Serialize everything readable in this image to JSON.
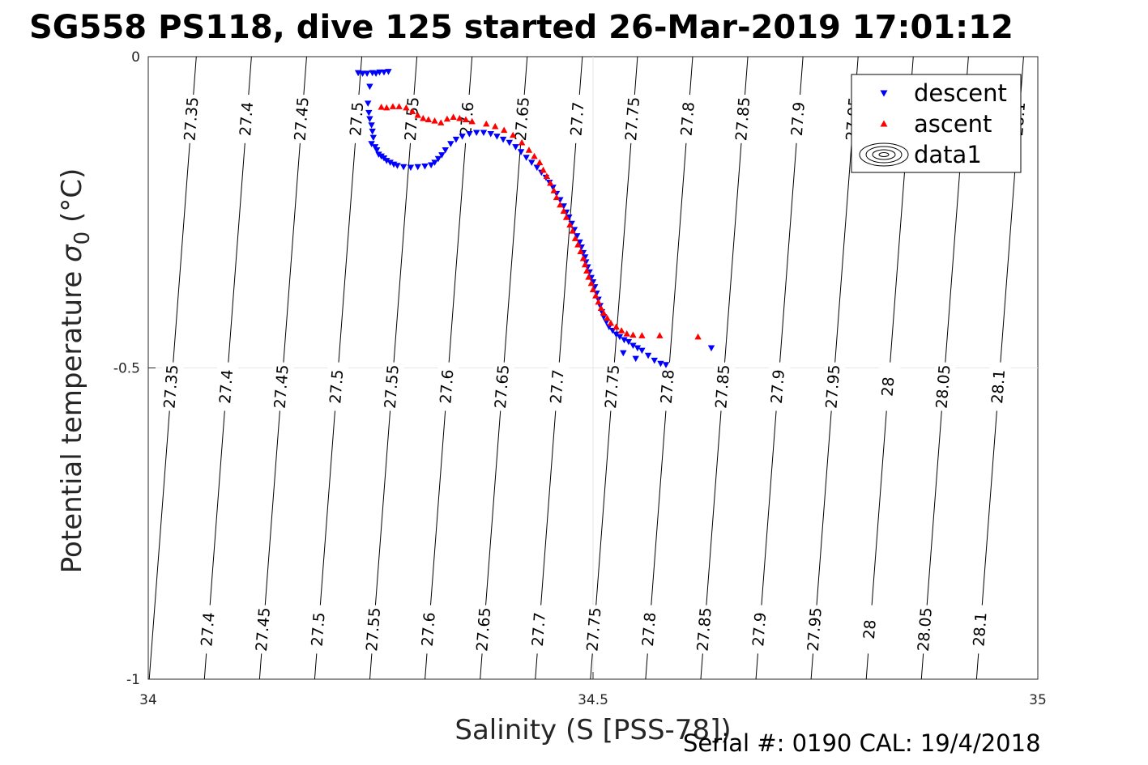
{
  "title": "SG558 PS118, dive 125 started 26-Mar-2019 17:01:12",
  "footer_text": "Serial #: 0190  CAL: 19/4/2018",
  "chart_data": {
    "type": "scatter",
    "xlabel": "Salinity (S [PSS-78])",
    "ylabel_main": "Potential temperature ",
    "ylabel_sigma": "σ",
    "ylabel_sub": "0",
    "ylabel_unit": " (°C)",
    "xlim": [
      34,
      35
    ],
    "ylim": [
      -1,
      0
    ],
    "x_ticks": [
      {
        "value": 34,
        "label": "34"
      },
      {
        "value": 34.5,
        "label": "34.5"
      },
      {
        "value": 35,
        "label": "35"
      }
    ],
    "y_ticks": [
      {
        "value": 0,
        "label": "0"
      },
      {
        "value": -0.5,
        "label": "-0.5"
      },
      {
        "value": -1,
        "label": "-1"
      }
    ],
    "grid": true,
    "legend": {
      "position": "top-right",
      "entries": [
        {
          "label": "descent",
          "color": "#0000ff",
          "marker": "triangle-down"
        },
        {
          "label": "ascent",
          "color": "#ff0000",
          "marker": "triangle-up"
        },
        {
          "label": "data1",
          "color": "#000000",
          "marker": "contour"
        }
      ]
    },
    "isopycnals": [
      {
        "sigma": 27.35,
        "label": "27.35",
        "s_at_top": 34.054
      },
      {
        "sigma": 27.4,
        "label": "27.4",
        "s_at_top": 34.116
      },
      {
        "sigma": 27.45,
        "label": "27.45",
        "s_at_top": 34.178
      },
      {
        "sigma": 27.5,
        "label": "27.5",
        "s_at_top": 34.24
      },
      {
        "sigma": 27.55,
        "label": "27.55",
        "s_at_top": 34.302
      },
      {
        "sigma": 27.6,
        "label": "27.6",
        "s_at_top": 34.364
      },
      {
        "sigma": 27.65,
        "label": "27.65",
        "s_at_top": 34.426
      },
      {
        "sigma": 27.7,
        "label": "27.7",
        "s_at_top": 34.488
      },
      {
        "sigma": 27.75,
        "label": "27.75",
        "s_at_top": 34.55
      },
      {
        "sigma": 27.8,
        "label": "27.8",
        "s_at_top": 34.612
      },
      {
        "sigma": 27.85,
        "label": "27.85",
        "s_at_top": 34.674
      },
      {
        "sigma": 27.9,
        "label": "27.9",
        "s_at_top": 34.736
      },
      {
        "sigma": 27.95,
        "label": "27.95",
        "s_at_top": 34.798
      },
      {
        "sigma": 28,
        "label": "28",
        "s_at_top": 34.86
      },
      {
        "sigma": 28.05,
        "label": "28.05",
        "s_at_top": 34.922
      },
      {
        "sigma": 28.1,
        "label": "28.1",
        "s_at_top": 34.984
      }
    ],
    "isopycnal_slope_ds_dtheta": 0.0529,
    "contour_label_temperatures": [
      -0.1,
      -0.53,
      -0.92
    ],
    "series": [
      {
        "name": "descent",
        "color": "#0000ff",
        "marker": "triangle-down",
        "points": [
          [
            34.236,
            -0.026
          ],
          [
            34.241,
            -0.027
          ],
          [
            34.246,
            -0.027
          ],
          [
            34.249,
            -0.048
          ],
          [
            34.252,
            -0.026
          ],
          [
            34.256,
            -0.027
          ],
          [
            34.26,
            -0.025
          ],
          [
            34.265,
            -0.025
          ],
          [
            34.27,
            -0.024
          ],
          [
            34.247,
            -0.075
          ],
          [
            34.248,
            -0.09
          ],
          [
            34.249,
            -0.1
          ],
          [
            34.251,
            -0.11
          ],
          [
            34.252,
            -0.12
          ],
          [
            34.253,
            -0.13
          ],
          [
            34.251,
            -0.14
          ],
          [
            34.255,
            -0.145
          ],
          [
            34.257,
            -0.15
          ],
          [
            34.259,
            -0.157
          ],
          [
            34.262,
            -0.16
          ],
          [
            34.265,
            -0.163
          ],
          [
            34.268,
            -0.167
          ],
          [
            34.272,
            -0.17
          ],
          [
            34.276,
            -0.173
          ],
          [
            34.28,
            -0.175
          ],
          [
            34.287,
            -0.177
          ],
          [
            34.295,
            -0.178
          ],
          [
            34.303,
            -0.177
          ],
          [
            34.311,
            -0.176
          ],
          [
            34.318,
            -0.174
          ],
          [
            34.322,
            -0.17
          ],
          [
            34.326,
            -0.164
          ],
          [
            34.33,
            -0.158
          ],
          [
            34.334,
            -0.15
          ],
          [
            34.34,
            -0.14
          ],
          [
            34.346,
            -0.133
          ],
          [
            34.353,
            -0.128
          ],
          [
            34.361,
            -0.124
          ],
          [
            34.369,
            -0.122
          ],
          [
            34.377,
            -0.122
          ],
          [
            34.385,
            -0.124
          ],
          [
            34.392,
            -0.128
          ],
          [
            34.399,
            -0.133
          ],
          [
            34.406,
            -0.138
          ],
          [
            34.413,
            -0.145
          ],
          [
            34.419,
            -0.153
          ],
          [
            34.425,
            -0.162
          ],
          [
            34.431,
            -0.17
          ],
          [
            34.437,
            -0.178
          ],
          [
            34.442,
            -0.186
          ],
          [
            34.447,
            -0.194
          ],
          [
            34.451,
            -0.202
          ],
          [
            34.455,
            -0.21
          ],
          [
            34.459,
            -0.22
          ],
          [
            34.463,
            -0.23
          ],
          [
            34.467,
            -0.24
          ],
          [
            34.47,
            -0.25
          ],
          [
            34.473,
            -0.258
          ],
          [
            34.476,
            -0.268
          ],
          [
            34.479,
            -0.278
          ],
          [
            34.482,
            -0.288
          ],
          [
            34.485,
            -0.298
          ],
          [
            34.487,
            -0.306
          ],
          [
            34.489,
            -0.315
          ],
          [
            34.491,
            -0.322
          ],
          [
            34.492,
            -0.33
          ],
          [
            34.494,
            -0.338
          ],
          [
            34.496,
            -0.346
          ],
          [
            34.498,
            -0.355
          ],
          [
            34.5,
            -0.362
          ],
          [
            34.502,
            -0.37
          ],
          [
            34.504,
            -0.38
          ],
          [
            34.506,
            -0.39
          ],
          [
            34.508,
            -0.4
          ],
          [
            34.51,
            -0.41
          ],
          [
            34.512,
            -0.418
          ],
          [
            34.515,
            -0.426
          ],
          [
            34.518,
            -0.434
          ],
          [
            34.522,
            -0.44
          ],
          [
            34.526,
            -0.446
          ],
          [
            34.53,
            -0.45
          ],
          [
            34.535,
            -0.455
          ],
          [
            34.54,
            -0.458
          ],
          [
            34.545,
            -0.464
          ],
          [
            34.55,
            -0.468
          ],
          [
            34.555,
            -0.472
          ],
          [
            34.562,
            -0.48
          ],
          [
            34.569,
            -0.488
          ],
          [
            34.548,
            -0.485
          ],
          [
            34.534,
            -0.476
          ],
          [
            34.576,
            -0.493
          ],
          [
            34.582,
            -0.495
          ],
          [
            34.633,
            -0.468
          ]
        ]
      },
      {
        "name": "ascent",
        "color": "#ff0000",
        "marker": "triangle-up",
        "points": [
          [
            34.262,
            -0.081
          ],
          [
            34.268,
            -0.082
          ],
          [
            34.275,
            -0.08
          ],
          [
            34.282,
            -0.08
          ],
          [
            34.29,
            -0.082
          ],
          [
            34.297,
            -0.088
          ],
          [
            34.303,
            -0.094
          ],
          [
            34.309,
            -0.099
          ],
          [
            34.315,
            -0.101
          ],
          [
            34.322,
            -0.103
          ],
          [
            34.329,
            -0.106
          ],
          [
            34.336,
            -0.1
          ],
          [
            34.343,
            -0.097
          ],
          [
            34.35,
            -0.099
          ],
          [
            34.357,
            -0.101
          ],
          [
            34.364,
            -0.104
          ],
          [
            34.38,
            -0.108
          ],
          [
            34.39,
            -0.112
          ],
          [
            34.4,
            -0.118
          ],
          [
            34.41,
            -0.126
          ],
          [
            34.42,
            -0.138
          ],
          [
            34.428,
            -0.15
          ],
          [
            34.434,
            -0.16
          ],
          [
            34.44,
            -0.17
          ],
          [
            34.444,
            -0.182
          ],
          [
            34.448,
            -0.192
          ],
          [
            34.452,
            -0.203
          ],
          [
            34.456,
            -0.215
          ],
          [
            34.459,
            -0.226
          ],
          [
            34.463,
            -0.238
          ],
          [
            34.467,
            -0.248
          ],
          [
            34.47,
            -0.258
          ],
          [
            34.474,
            -0.27
          ],
          [
            34.477,
            -0.28
          ],
          [
            34.48,
            -0.292
          ],
          [
            34.483,
            -0.302
          ],
          [
            34.486,
            -0.313
          ],
          [
            34.489,
            -0.324
          ],
          [
            34.491,
            -0.334
          ],
          [
            34.493,
            -0.344
          ],
          [
            34.495,
            -0.354
          ],
          [
            34.498,
            -0.364
          ],
          [
            34.5,
            -0.374
          ],
          [
            34.503,
            -0.384
          ],
          [
            34.506,
            -0.394
          ],
          [
            34.509,
            -0.404
          ],
          [
            34.512,
            -0.412
          ],
          [
            34.516,
            -0.42
          ],
          [
            34.52,
            -0.428
          ],
          [
            34.526,
            -0.434
          ],
          [
            34.532,
            -0.44
          ],
          [
            34.538,
            -0.445
          ],
          [
            34.545,
            -0.447
          ],
          [
            34.555,
            -0.448
          ],
          [
            34.575,
            -0.448
          ],
          [
            34.618,
            -0.45
          ]
        ]
      }
    ]
  }
}
